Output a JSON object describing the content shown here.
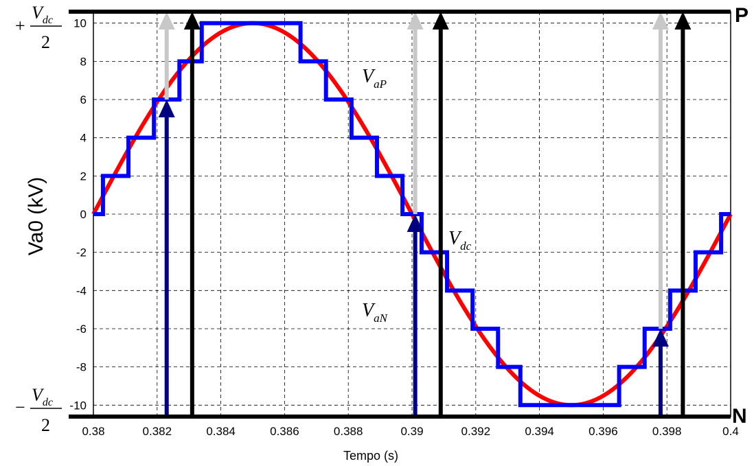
{
  "chart_data": {
    "type": "line",
    "xlabel": "Tempo (s)",
    "ylabel": "Va0 (kV)",
    "xlim": [
      0.38,
      0.4
    ],
    "ylim": [
      -10.6,
      10.6
    ],
    "x_ticks": [
      "0.38",
      "0.382",
      "0.384",
      "0.386",
      "0.388",
      "0.39",
      "0.392",
      "0.394",
      "0.396",
      "0.398",
      "0.4"
    ],
    "y_ticks": [
      "10",
      "8",
      "6",
      "4",
      "2",
      "0",
      "-2",
      "-4",
      "-6",
      "-8",
      "-10"
    ],
    "grid": true,
    "sine": {
      "amplitude": 10,
      "period": 0.02,
      "start": 0.38,
      "color": "#ff0000"
    },
    "staircase": {
      "color": "#0000ff",
      "points": [
        [
          0.38,
          0
        ],
        [
          0.3803,
          0
        ],
        [
          0.3803,
          2
        ],
        [
          0.3811,
          2
        ],
        [
          0.3811,
          4
        ],
        [
          0.3819,
          4
        ],
        [
          0.3819,
          6
        ],
        [
          0.3827,
          6
        ],
        [
          0.3827,
          8
        ],
        [
          0.3834,
          8
        ],
        [
          0.3834,
          10
        ],
        [
          0.3865,
          10
        ],
        [
          0.3865,
          8
        ],
        [
          0.3873,
          8
        ],
        [
          0.3873,
          6
        ],
        [
          0.3881,
          6
        ],
        [
          0.3881,
          4
        ],
        [
          0.3889,
          4
        ],
        [
          0.3889,
          2
        ],
        [
          0.3897,
          2
        ],
        [
          0.3897,
          0
        ],
        [
          0.3903,
          0
        ],
        [
          0.3903,
          -2
        ],
        [
          0.3911,
          -2
        ],
        [
          0.3911,
          -4
        ],
        [
          0.3919,
          -4
        ],
        [
          0.3919,
          -6
        ],
        [
          0.3927,
          -6
        ],
        [
          0.3927,
          -8
        ],
        [
          0.3934,
          -8
        ],
        [
          0.3934,
          -10
        ],
        [
          0.3965,
          -10
        ],
        [
          0.3965,
          -8
        ],
        [
          0.3973,
          -8
        ],
        [
          0.3973,
          -6
        ],
        [
          0.3981,
          -6
        ],
        [
          0.3981,
          -4
        ],
        [
          0.3989,
          -4
        ],
        [
          0.3989,
          -2
        ],
        [
          0.3997,
          -2
        ],
        [
          0.3997,
          0
        ],
        [
          0.4,
          0
        ]
      ]
    },
    "bus_top": {
      "y": 10.6,
      "label": "P"
    },
    "bus_bottom": {
      "y": -10.6,
      "label": "N"
    },
    "arrows": [
      {
        "group": "VaP",
        "color": "#c8c8c8",
        "x": 0.3823,
        "from": 6,
        "to": 10.6
      },
      {
        "group": "VaP",
        "color": "#c8c8c8",
        "x": 0.3901,
        "from": 0,
        "to": 10.6
      },
      {
        "group": "VaP",
        "color": "#c8c8c8",
        "x": 0.3978,
        "from": -6,
        "to": 10.6
      },
      {
        "group": "Vdc",
        "color": "#000000",
        "x": 0.3831,
        "from": -10.6,
        "to": 10.6
      },
      {
        "group": "Vdc",
        "color": "#000000",
        "x": 0.3909,
        "from": -10.6,
        "to": 10.6
      },
      {
        "group": "Vdc",
        "color": "#000000",
        "x": 0.3985,
        "from": -10.6,
        "to": 10.6
      },
      {
        "group": "VaN",
        "color": "#000080",
        "x": 0.3823,
        "from": -10.6,
        "to": 6
      },
      {
        "group": "VaN",
        "color": "#000080",
        "x": 0.3901,
        "from": -10.6,
        "to": 0
      },
      {
        "group": "VaN",
        "color": "#000080",
        "x": 0.3978,
        "from": -10.6,
        "to": -6
      }
    ],
    "annotations": {
      "vap": {
        "main": "V",
        "sub": "aP"
      },
      "vdc": {
        "main": "V",
        "sub": "dc"
      },
      "van": {
        "main": "V",
        "sub": "aN"
      },
      "top_level": {
        "sign": "+",
        "numerator_main": "V",
        "numerator_sub": "dc",
        "denominator": "2"
      },
      "bottom_level": {
        "sign": "−",
        "numerator_main": "V",
        "numerator_sub": "dc",
        "denominator": "2"
      }
    }
  }
}
